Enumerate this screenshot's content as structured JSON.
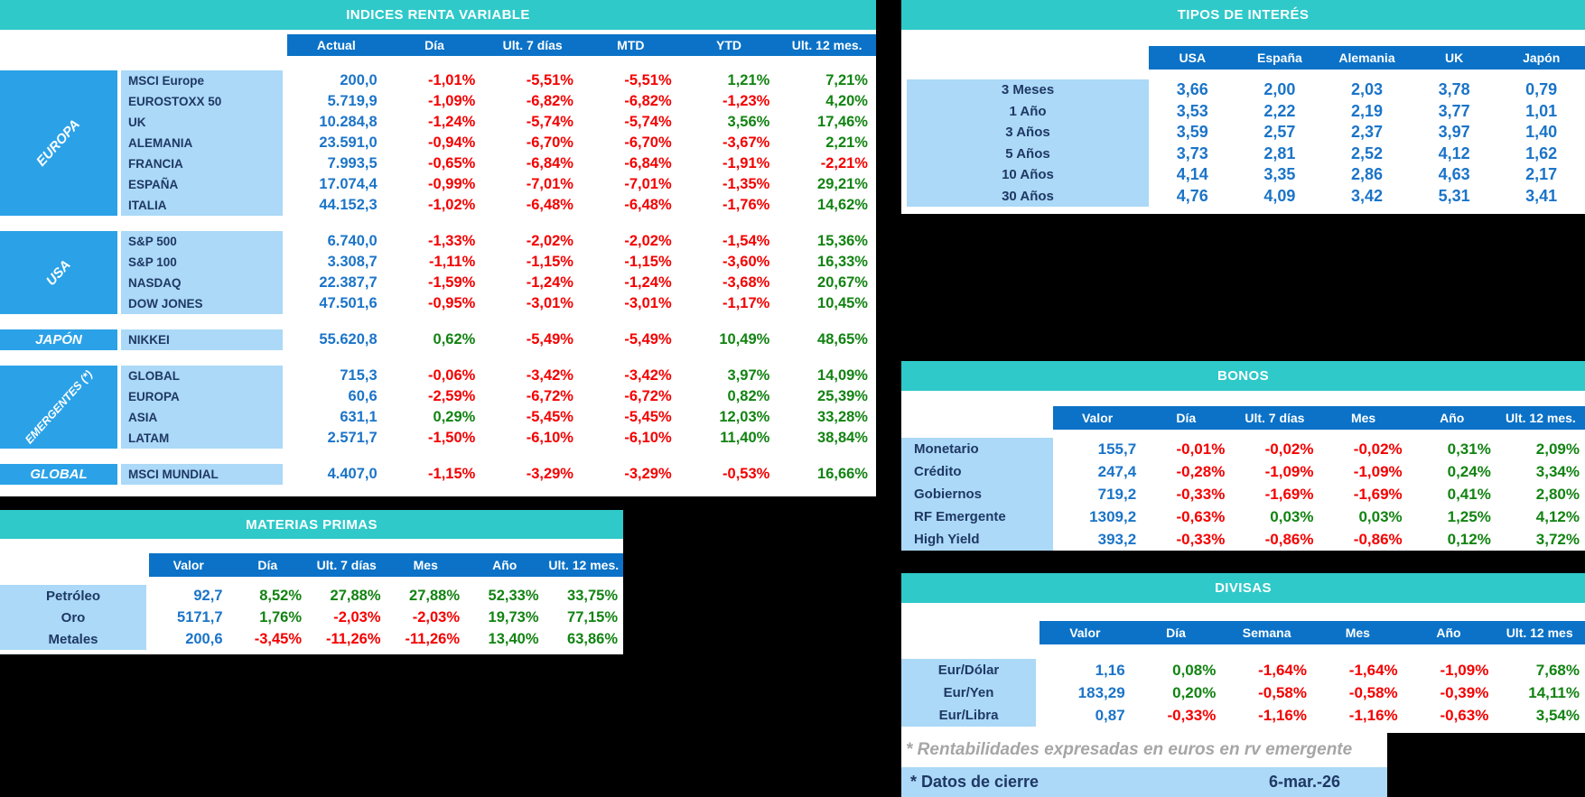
{
  "colors": {
    "teal_header": "#2FC9C9",
    "column_header_blue": "#0B72C7",
    "group_blue": "#2BA2E8",
    "light_blue": "#ABD9F7",
    "navy_text": "#1F3864",
    "value_blue": "#1B74C8",
    "positive_green": "#128312",
    "negative_red": "#F40000",
    "footnote_gray": "#A6A6A6"
  },
  "indices": {
    "title": "INDICES RENTA VARIABLE",
    "columns": [
      "Actual",
      "Día",
      "Ult. 7 días",
      "MTD",
      "YTD",
      "Ult. 12 mes."
    ],
    "groups": [
      {
        "label": "EUROPA",
        "rows": [
          {
            "name": "MSCI Europe",
            "values": [
              "200,0",
              "-1,01%",
              "-5,51%",
              "-5,51%",
              "1,21%",
              "7,21%"
            ]
          },
          {
            "name": "EUROSTOXX 50",
            "values": [
              "5.719,9",
              "-1,09%",
              "-6,82%",
              "-6,82%",
              "-1,23%",
              "4,20%"
            ]
          },
          {
            "name": "UK",
            "values": [
              "10.284,8",
              "-1,24%",
              "-5,74%",
              "-5,74%",
              "3,56%",
              "17,46%"
            ]
          },
          {
            "name": "ALEMANIA",
            "values": [
              "23.591,0",
              "-0,94%",
              "-6,70%",
              "-6,70%",
              "-3,67%",
              "2,21%"
            ]
          },
          {
            "name": "FRANCIA",
            "values": [
              "7.993,5",
              "-0,65%",
              "-6,84%",
              "-6,84%",
              "-1,91%",
              "-2,21%"
            ]
          },
          {
            "name": "ESPAÑA",
            "values": [
              "17.074,4",
              "-0,99%",
              "-7,01%",
              "-7,01%",
              "-1,35%",
              "29,21%"
            ]
          },
          {
            "name": "ITALIA",
            "values": [
              "44.152,3",
              "-1,02%",
              "-6,48%",
              "-6,48%",
              "-1,76%",
              "14,62%"
            ]
          }
        ]
      },
      {
        "label": "USA",
        "rows": [
          {
            "name": "S&P 500",
            "values": [
              "6.740,0",
              "-1,33%",
              "-2,02%",
              "-2,02%",
              "-1,54%",
              "15,36%"
            ]
          },
          {
            "name": "S&P 100",
            "values": [
              "3.308,7",
              "-1,11%",
              "-1,15%",
              "-1,15%",
              "-3,60%",
              "16,33%"
            ]
          },
          {
            "name": "NASDAQ",
            "values": [
              "22.387,7",
              "-1,59%",
              "-1,24%",
              "-1,24%",
              "-3,68%",
              "20,67%"
            ]
          },
          {
            "name": "DOW JONES",
            "values": [
              "47.501,6",
              "-0,95%",
              "-3,01%",
              "-3,01%",
              "-1,17%",
              "10,45%"
            ]
          }
        ]
      },
      {
        "label": "JAPÓN",
        "rows": [
          {
            "name": "NIKKEI",
            "values": [
              "55.620,8",
              "0,62%",
              "-5,49%",
              "-5,49%",
              "10,49%",
              "48,65%"
            ]
          }
        ]
      },
      {
        "label": "EMERGENTES (*)",
        "rows": [
          {
            "name": "GLOBAL",
            "values": [
              "715,3",
              "-0,06%",
              "-3,42%",
              "-3,42%",
              "3,97%",
              "14,09%"
            ]
          },
          {
            "name": "EUROPA",
            "values": [
              "60,6",
              "-2,59%",
              "-6,72%",
              "-6,72%",
              "0,82%",
              "25,39%"
            ]
          },
          {
            "name": "ASIA",
            "values": [
              "631,1",
              "0,29%",
              "-5,45%",
              "-5,45%",
              "12,03%",
              "33,28%"
            ]
          },
          {
            "name": "LATAM",
            "values": [
              "2.571,7",
              "-1,50%",
              "-6,10%",
              "-6,10%",
              "11,40%",
              "38,84%"
            ]
          }
        ]
      },
      {
        "label": "GLOBAL",
        "rows": [
          {
            "name": "MSCI MUNDIAL",
            "values": [
              "4.407,0",
              "-1,15%",
              "-3,29%",
              "-3,29%",
              "-0,53%",
              "16,66%"
            ]
          }
        ]
      }
    ]
  },
  "tipos": {
    "title": "TIPOS DE INTERÉS",
    "columns": [
      "USA",
      "España",
      "Alemania",
      "UK",
      "Japón"
    ],
    "rows": [
      {
        "label": "3 Meses",
        "values": [
          "3,66",
          "2,00",
          "2,03",
          "3,78",
          "0,79"
        ]
      },
      {
        "label": "1 Año",
        "values": [
          "3,53",
          "2,22",
          "2,19",
          "3,77",
          "1,01"
        ]
      },
      {
        "label": "3 Años",
        "values": [
          "3,59",
          "2,57",
          "2,37",
          "3,97",
          "1,40"
        ]
      },
      {
        "label": "5 Años",
        "values": [
          "3,73",
          "2,81",
          "2,52",
          "4,12",
          "1,62"
        ]
      },
      {
        "label": "10 Años",
        "values": [
          "4,14",
          "3,35",
          "2,86",
          "4,63",
          "2,17"
        ]
      },
      {
        "label": "30 Años",
        "values": [
          "4,76",
          "4,09",
          "3,42",
          "5,31",
          "3,41"
        ]
      }
    ]
  },
  "bonos": {
    "title": "BONOS",
    "columns": [
      "Valor",
      "Día",
      "Ult. 7 días",
      "Mes",
      "Año",
      "Ult. 12 mes."
    ],
    "rows": [
      {
        "label": "Monetario",
        "values": [
          "155,7",
          "-0,01%",
          "-0,02%",
          "-0,02%",
          "0,31%",
          "2,09%"
        ]
      },
      {
        "label": "Crédito",
        "values": [
          "247,4",
          "-0,28%",
          "-1,09%",
          "-1,09%",
          "0,24%",
          "3,34%"
        ]
      },
      {
        "label": "Gobiernos",
        "values": [
          "719,2",
          "-0,33%",
          "-1,69%",
          "-1,69%",
          "0,41%",
          "2,80%"
        ]
      },
      {
        "label": "RF Emergente",
        "values": [
          "1309,2",
          "-0,63%",
          "0,03%",
          "0,03%",
          "1,25%",
          "4,12%"
        ]
      },
      {
        "label": "High Yield",
        "values": [
          "393,2",
          "-0,33%",
          "-0,86%",
          "-0,86%",
          "0,12%",
          "3,72%"
        ]
      }
    ]
  },
  "materias": {
    "title": "MATERIAS PRIMAS",
    "columns": [
      "Valor",
      "Día",
      "Ult. 7 días",
      "Mes",
      "Año",
      "Ult. 12 mes."
    ],
    "rows": [
      {
        "label": "Petróleo",
        "values": [
          "92,7",
          "8,52%",
          "27,88%",
          "27,88%",
          "52,33%",
          "33,75%"
        ]
      },
      {
        "label": "Oro",
        "values": [
          "5171,7",
          "1,76%",
          "-2,03%",
          "-2,03%",
          "19,73%",
          "77,15%"
        ]
      },
      {
        "label": "Metales",
        "values": [
          "200,6",
          "-3,45%",
          "-11,26%",
          "-11,26%",
          "13,40%",
          "63,86%"
        ]
      }
    ]
  },
  "divisas": {
    "title": "DIVISAS",
    "columns": [
      "Valor",
      "Día",
      "Semana",
      "Mes",
      "Año",
      "Ult. 12 mes"
    ],
    "rows": [
      {
        "label": "Eur/Dólar",
        "values": [
          "1,16",
          "0,08%",
          "-1,64%",
          "-1,64%",
          "-1,09%",
          "7,68%"
        ]
      },
      {
        "label": "Eur/Yen",
        "values": [
          "183,29",
          "0,20%",
          "-0,58%",
          "-0,58%",
          "-0,39%",
          "14,11%"
        ]
      },
      {
        "label": "Eur/Libra",
        "values": [
          "0,87",
          "-0,33%",
          "-1,16%",
          "-1,16%",
          "-0,63%",
          "3,54%"
        ]
      }
    ]
  },
  "footnote": "* Rentabilidades expresadas en euros en rv emergente",
  "footer": {
    "label": "* Datos de cierre",
    "date": "6-mar.-26"
  }
}
